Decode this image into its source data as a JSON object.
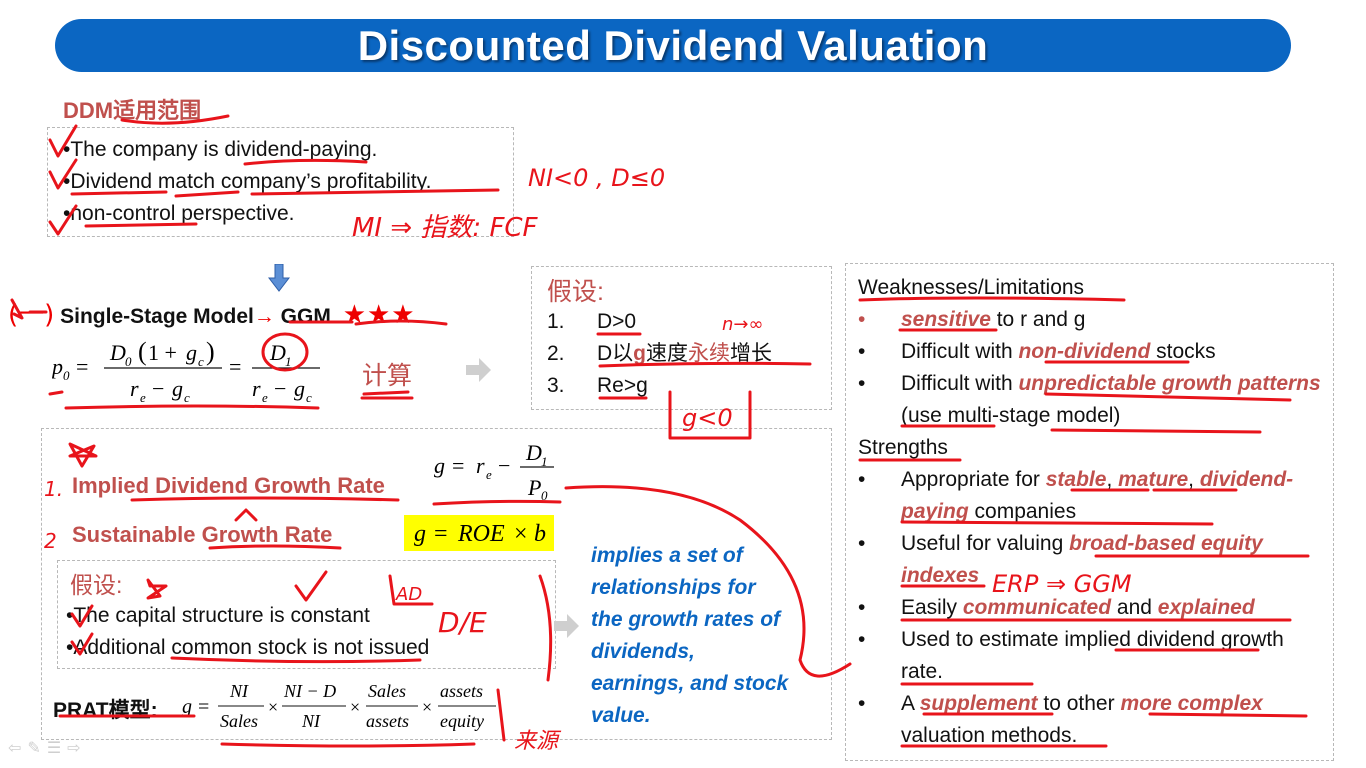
{
  "title": "Discounted Dividend Valuation",
  "ddm": {
    "heading": "DDM适用范围",
    "bullets": [
      "The company is dividend-paying.",
      "Dividend match company’s profitability.",
      "non-control perspective."
    ]
  },
  "ggm": {
    "prefix": "(一)",
    "label": "Single-Stage Model",
    "arrow": "→",
    "model": "GGM",
    "stars": "★★★",
    "calc": "计算"
  },
  "assumptions": {
    "heading": "假设:",
    "items": [
      {
        "num": "1.",
        "text": "D>0"
      },
      {
        "num": "2.",
        "text_pre": "D以",
        "text_g": "g",
        "text_mid": "速度",
        "text_perm": "永续",
        "text_post": "增长"
      },
      {
        "num": "3.",
        "text": "Re>g"
      }
    ]
  },
  "growth": {
    "implied": "Implied Dividend Growth Rate",
    "sustainable": "Sustainable Growth Rate",
    "inner_heading": "假设:",
    "inner_bullets": [
      "The capital structure is constant",
      "Additional common stock is not issued"
    ],
    "prat_label": "PRAT模型:",
    "blue_note": "implies a set of relationships for the growth rates of dividends, earnings, and stock value."
  },
  "right": {
    "weak_head": "Weaknesses/Limitations",
    "weak_1_hl": "sensitive",
    "weak_1_rest": " to r and g",
    "weak_2_pre": "Difficult with ",
    "weak_2_hl": "non-dividend",
    "weak_2_post": " stocks",
    "weak_3_pre": "Difficult with ",
    "weak_3_hl": "unpredictable growth patterns",
    "weak_3_post": " (use multi-stage model)",
    "str_head": "Strengths",
    "str_1_pre": "Appropriate for ",
    "str_1_hl1": "stable",
    "str_1_hl2": "mature",
    "str_1_hl3": "dividend-paying",
    "str_1_post": " companies",
    "str_2_pre": "Useful for valuing ",
    "str_2_hl": "broad-based equity indexes",
    "str_3_pre": "Easily ",
    "str_3_hl1": "communicated",
    "str_3_mid": " and ",
    "str_3_hl2": "explained",
    "str_4": "Used to estimate implied dividend growth rate.",
    "str_5_pre": "A ",
    "str_5_hl1": "supplement",
    "str_5_mid": " to other ",
    "str_5_hl2": "more complex",
    "str_5_post": " valuation methods."
  },
  "handwriting": {
    "ni_note": "NI<0 , D≤0",
    "mi_note": "MI ⇒ 指数: FCF",
    "n_inf": "n→∞",
    "g_neg": "g<0",
    "sub": "①",
    "de": "D/E",
    "ad": "AD",
    "erp": "ERP ⇒ GGM",
    "lai": "来源"
  },
  "colors": {
    "banner": "#0b66c2",
    "heading_red": "#c0504d",
    "ink": "#e8141b",
    "note_blue": "#0b66c2",
    "highlight": "#ffff00"
  },
  "icons": [
    "arrow-left-icon",
    "pen-icon",
    "menu-icon",
    "arrow-right-icon"
  ]
}
